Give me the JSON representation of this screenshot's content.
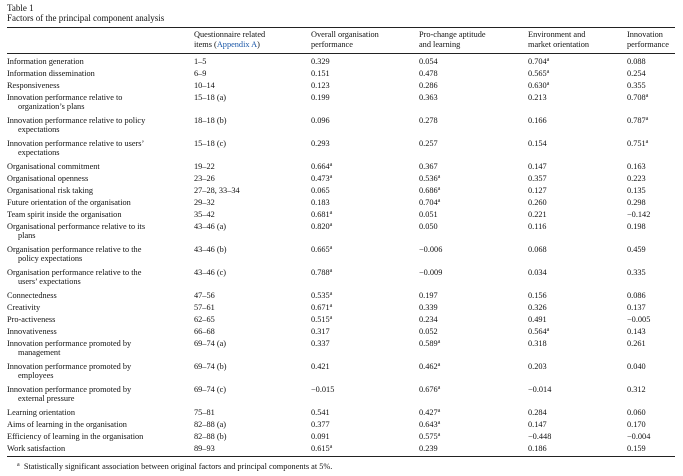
{
  "table": {
    "label": "Table 1",
    "caption": "Factors of the principal component analysis",
    "headers": {
      "factor": "",
      "items_line1": "Questionnaire related",
      "items_line2_prefix": "items (",
      "items_line2_link": "Appendix A",
      "items_line2_suffix": ")",
      "overall_line1": "Overall organisation",
      "overall_line2": "performance",
      "prochange_line1": "Pro-change aptitude",
      "prochange_line2": "and learning",
      "environment_line1": "Environment and",
      "environment_line2": "market orientation",
      "innovation_line1": "Innovation",
      "innovation_line2": "performance"
    },
    "rows": [
      {
        "factor": "Information generation",
        "factor2": "",
        "items": "1–5",
        "overall": "0.329",
        "overall_sig": "",
        "prochange": "0.054",
        "prochange_sig": "",
        "environment": "0.704",
        "environment_sig": "a",
        "innovation": "0.088",
        "innovation_sig": ""
      },
      {
        "factor": "Information dissemination",
        "factor2": "",
        "items": "6–9",
        "overall": "0.151",
        "overall_sig": "",
        "prochange": "0.478",
        "prochange_sig": "",
        "environment": "0.565",
        "environment_sig": "a",
        "innovation": "0.254",
        "innovation_sig": ""
      },
      {
        "factor": "Responsiveness",
        "factor2": "",
        "items": "10–14",
        "overall": "0.123",
        "overall_sig": "",
        "prochange": "0.286",
        "prochange_sig": "",
        "environment": "0.630",
        "environment_sig": "a",
        "innovation": "0.355",
        "innovation_sig": ""
      },
      {
        "factor": "Innovation performance relative to",
        "factor2": "organization’s plans",
        "items": "15–18 (a)",
        "overall": "0.199",
        "overall_sig": "",
        "prochange": "0.363",
        "prochange_sig": "",
        "environment": "0.213",
        "environment_sig": "",
        "innovation": "0.708",
        "innovation_sig": "a"
      },
      {
        "factor": "Innovation performance relative to policy",
        "factor2": "expectations",
        "items": "18–18 (b)",
        "overall": "0.096",
        "overall_sig": "",
        "prochange": "0.278",
        "prochange_sig": "",
        "environment": "0.166",
        "environment_sig": "",
        "innovation": "0.787",
        "innovation_sig": "a"
      },
      {
        "factor": "Innovation performance relative to users’",
        "factor2": "expectations",
        "items": "15–18 (c)",
        "overall": "0.293",
        "overall_sig": "",
        "prochange": "0.257",
        "prochange_sig": "",
        "environment": "0.154",
        "environment_sig": "",
        "innovation": "0.751",
        "innovation_sig": "a"
      },
      {
        "factor": "Organisational commitment",
        "factor2": "",
        "items": "19–22",
        "overall": "0.664",
        "overall_sig": "a",
        "prochange": "0.367",
        "prochange_sig": "",
        "environment": "0.147",
        "environment_sig": "",
        "innovation": "0.163",
        "innovation_sig": ""
      },
      {
        "factor": "Organisational openness",
        "factor2": "",
        "items": "23–26",
        "overall": "0.473",
        "overall_sig": "a",
        "prochange": "0.536",
        "prochange_sig": "a",
        "environment": "0.357",
        "environment_sig": "",
        "innovation": "0.223",
        "innovation_sig": ""
      },
      {
        "factor": "Organisational risk taking",
        "factor2": "",
        "items": "27–28, 33–34",
        "overall": "0.065",
        "overall_sig": "",
        "prochange": "0.686",
        "prochange_sig": "a",
        "environment": "0.127",
        "environment_sig": "",
        "innovation": "0.135",
        "innovation_sig": ""
      },
      {
        "factor": "Future orientation of the organisation",
        "factor2": "",
        "items": "29–32",
        "overall": "0.183",
        "overall_sig": "",
        "prochange": "0.704",
        "prochange_sig": "a",
        "environment": "0.260",
        "environment_sig": "",
        "innovation": "0.298",
        "innovation_sig": ""
      },
      {
        "factor": "Team spirit inside the organisation",
        "factor2": "",
        "items": "35–42",
        "overall": "0.681",
        "overall_sig": "a",
        "prochange": "0.051",
        "prochange_sig": "",
        "environment": "0.221",
        "environment_sig": "",
        "innovation": "−0.142",
        "innovation_sig": ""
      },
      {
        "factor": "Organisational performance relative to its",
        "factor2": "plans",
        "items": "43–46 (a)",
        "overall": "0.820",
        "overall_sig": "a",
        "prochange": "0.050",
        "prochange_sig": "",
        "environment": "0.116",
        "environment_sig": "",
        "innovation": "0.198",
        "innovation_sig": ""
      },
      {
        "factor": "Organisation performance relative to the",
        "factor2": "policy expectations",
        "items": "43–46 (b)",
        "overall": "0.665",
        "overall_sig": "a",
        "prochange": "−0.006",
        "prochange_sig": "",
        "environment": "0.068",
        "environment_sig": "",
        "innovation": "0.459",
        "innovation_sig": ""
      },
      {
        "factor": "Organisation performance relative to the",
        "factor2": "users’ expectations",
        "items": "43–46 (c)",
        "overall": "0.788",
        "overall_sig": "a",
        "prochange": "−0.009",
        "prochange_sig": "",
        "environment": "0.034",
        "environment_sig": "",
        "innovation": "0.335",
        "innovation_sig": ""
      },
      {
        "factor": "Connectedness",
        "factor2": "",
        "items": "47–56",
        "overall": "0.535",
        "overall_sig": "a",
        "prochange": "0.197",
        "prochange_sig": "",
        "environment": "0.156",
        "environment_sig": "",
        "innovation": "0.086",
        "innovation_sig": ""
      },
      {
        "factor": "Creativity",
        "factor2": "",
        "items": "57–61",
        "overall": "0.671",
        "overall_sig": "a",
        "prochange": "0.339",
        "prochange_sig": "",
        "environment": "0.326",
        "environment_sig": "",
        "innovation": "0.137",
        "innovation_sig": ""
      },
      {
        "factor": "Pro-activeness",
        "factor2": "",
        "items": "62–65",
        "overall": "0.515",
        "overall_sig": "a",
        "prochange": "0.234",
        "prochange_sig": "",
        "environment": "0.491",
        "environment_sig": "",
        "innovation": "−0.005",
        "innovation_sig": ""
      },
      {
        "factor": "Innovativeness",
        "factor2": "",
        "items": "66–68",
        "overall": "0.317",
        "overall_sig": "",
        "prochange": "0.052",
        "prochange_sig": "",
        "environment": "0.564",
        "environment_sig": "a",
        "innovation": "0.143",
        "innovation_sig": ""
      },
      {
        "factor": "Innovation performance promoted by",
        "factor2": "management",
        "items": "69–74 (a)",
        "overall": "0.337",
        "overall_sig": "",
        "prochange": "0.589",
        "prochange_sig": "a",
        "environment": "0.318",
        "environment_sig": "",
        "innovation": "0.261",
        "innovation_sig": ""
      },
      {
        "factor": "Innovation performance promoted by",
        "factor2": "employees",
        "items": "69–74 (b)",
        "overall": "0.421",
        "overall_sig": "",
        "prochange": "0.462",
        "prochange_sig": "a",
        "environment": "0.203",
        "environment_sig": "",
        "innovation": "0.040",
        "innovation_sig": ""
      },
      {
        "factor": "Innovation performance promoted by",
        "factor2": "external pressure",
        "items": "69–74 (c)",
        "overall": "−0.015",
        "overall_sig": "",
        "prochange": "0.676",
        "prochange_sig": "a",
        "environment": "−0.014",
        "environment_sig": "",
        "innovation": "0.312",
        "innovation_sig": ""
      },
      {
        "factor": "Learning orientation",
        "factor2": "",
        "items": "75–81",
        "overall": "0.541",
        "overall_sig": "",
        "prochange": "0.427",
        "prochange_sig": "a",
        "environment": "0.284",
        "environment_sig": "",
        "innovation": "0.060",
        "innovation_sig": ""
      },
      {
        "factor": "Aims of learning in the organisation",
        "factor2": "",
        "items": "82–88 (a)",
        "overall": "0.377",
        "overall_sig": "",
        "prochange": "0.643",
        "prochange_sig": "a",
        "environment": "0.147",
        "environment_sig": "",
        "innovation": "0.170",
        "innovation_sig": ""
      },
      {
        "factor": "Efficiency of learning in the organisation",
        "factor2": "",
        "items": "82–88 (b)",
        "overall": "0.091",
        "overall_sig": "",
        "prochange": "0.575",
        "prochange_sig": "a",
        "environment": "−0.448",
        "environment_sig": "",
        "innovation": "−0.004",
        "innovation_sig": ""
      },
      {
        "factor": "Work satisfaction",
        "factor2": "",
        "items": "89–93",
        "overall": "0.615",
        "overall_sig": "a",
        "prochange": "0.239",
        "prochange_sig": "",
        "environment": "0.186",
        "environment_sig": "",
        "innovation": "0.159",
        "innovation_sig": ""
      }
    ],
    "footnote_marker": "a",
    "footnote_text": "Statistically significant association between original factors and principal components at 5%."
  }
}
